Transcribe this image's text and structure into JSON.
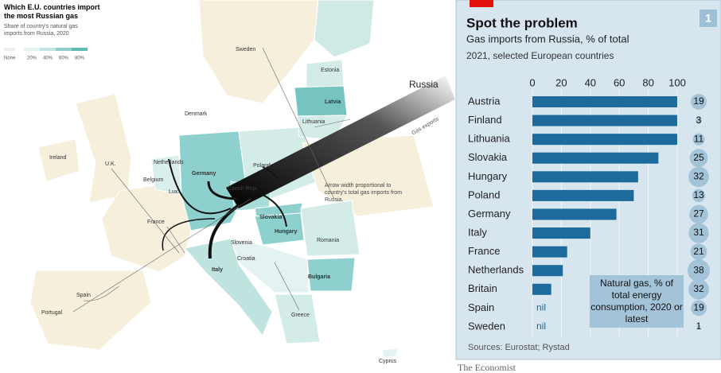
{
  "map": {
    "title": "Which E.U. countries import the most Russian gas",
    "subtitle": "Share of country's natural gas imports from Russia, 2020",
    "legend": [
      "None",
      "20%",
      "40%",
      "60%",
      "80%"
    ],
    "labels": [
      "Sweden",
      "Estonia",
      "Latvia",
      "Lithuania",
      "Denmark",
      "Ireland",
      "U.K.",
      "Netherlands",
      "Germany",
      "Poland",
      "Belgium",
      "Lux.",
      "Czech Rep.",
      "Slovakia",
      "Hungary",
      "France",
      "Slovenia",
      "Croatia",
      "Romania",
      "Bulgaria",
      "Italy",
      "Spain",
      "Portugal",
      "Greece",
      "Cyprus"
    ],
    "russia": "Russia",
    "arrow_label": "Gas exports",
    "annotation": "Arrow width proportional to country's total gas imports from Russia."
  },
  "chart_data": {
    "type": "bar",
    "orientation": "horizontal",
    "title": "Spot the problem",
    "subtitle": "Gas imports from Russia, % of total",
    "note": "2021, selected European countries",
    "badge": "1",
    "categories": [
      "Austria",
      "Finland",
      "Lithuania",
      "Slovakia",
      "Hungary",
      "Poland",
      "Germany",
      "Italy",
      "France",
      "Netherlands",
      "Britain",
      "Spain",
      "Sweden"
    ],
    "values": [
      100,
      100,
      100,
      87,
      73,
      70,
      58,
      40,
      24,
      21,
      13,
      null,
      null
    ],
    "value_labels": [
      null,
      null,
      null,
      null,
      null,
      null,
      null,
      null,
      null,
      null,
      null,
      "nil",
      "nil"
    ],
    "color": "#1d6a9c",
    "xlim": [
      0,
      100
    ],
    "xticks": [
      0,
      20,
      40,
      60,
      80,
      100
    ],
    "grid": true,
    "bubbles": {
      "name": "Natural gas, % of total energy consumption, 2020 or latest",
      "color": "#a3c3d8",
      "values": [
        19,
        3,
        11,
        25,
        32,
        13,
        27,
        31,
        21,
        38,
        32,
        19,
        1
      ]
    },
    "source": "Sources: Eurostat; Rystad",
    "brand": "The Economist"
  }
}
